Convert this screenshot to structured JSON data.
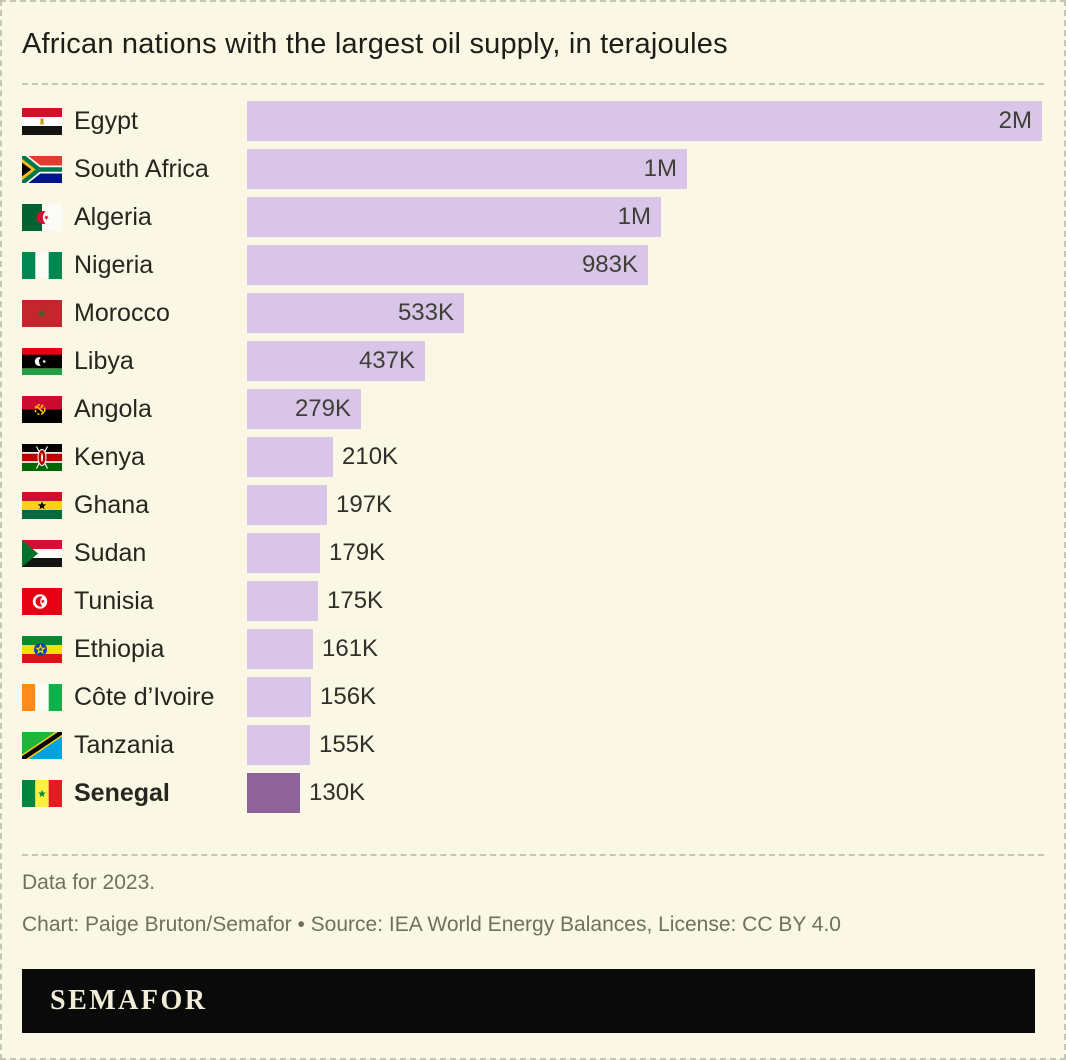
{
  "title": "African nations with the largest oil supply, in terajoules",
  "chart_data": {
    "type": "bar",
    "orientation": "horizontal",
    "unit": "terajoules",
    "title": "African nations with the largest oil supply, in terajoules",
    "legend": "none",
    "grid": false,
    "xlim": [
      0,
      1950000
    ],
    "categories": [
      "Egypt",
      "South Africa",
      "Algeria",
      "Nigeria",
      "Morocco",
      "Libya",
      "Angola",
      "Kenya",
      "Ghana",
      "Sudan",
      "Tunisia",
      "Ethiopia",
      "Côte d’Ivoire",
      "Tanzania",
      "Senegal"
    ],
    "values": [
      1950000,
      1080000,
      1015000,
      983000,
      533000,
      437000,
      279000,
      210000,
      197000,
      179000,
      175000,
      161000,
      156000,
      155000,
      130000
    ],
    "value_labels": [
      "2M",
      "1M",
      "1M",
      "983K",
      "533K",
      "437K",
      "279K",
      "210K",
      "197K",
      "179K",
      "175K",
      "161K",
      "156K",
      "155K",
      "130K"
    ],
    "highlight_category": "Senegal",
    "rows": [
      {
        "country": "Egypt",
        "flag": "egypt-flag",
        "value": 1950000,
        "label": "2M",
        "label_inside": true,
        "highlight": false
      },
      {
        "country": "South Africa",
        "flag": "south-africa-flag",
        "value": 1080000,
        "label": "1M",
        "label_inside": true,
        "highlight": false
      },
      {
        "country": "Algeria",
        "flag": "algeria-flag",
        "value": 1015000,
        "label": "1M",
        "label_inside": true,
        "highlight": false
      },
      {
        "country": "Nigeria",
        "flag": "nigeria-flag",
        "value": 983000,
        "label": "983K",
        "label_inside": true,
        "highlight": false
      },
      {
        "country": "Morocco",
        "flag": "morocco-flag",
        "value": 533000,
        "label": "533K",
        "label_inside": true,
        "highlight": false
      },
      {
        "country": "Libya",
        "flag": "libya-flag",
        "value": 437000,
        "label": "437K",
        "label_inside": true,
        "highlight": false
      },
      {
        "country": "Angola",
        "flag": "angola-flag",
        "value": 279000,
        "label": "279K",
        "label_inside": true,
        "highlight": false
      },
      {
        "country": "Kenya",
        "flag": "kenya-flag",
        "value": 210000,
        "label": "210K",
        "label_inside": false,
        "highlight": false
      },
      {
        "country": "Ghana",
        "flag": "ghana-flag",
        "value": 197000,
        "label": "197K",
        "label_inside": false,
        "highlight": false
      },
      {
        "country": "Sudan",
        "flag": "sudan-flag",
        "value": 179000,
        "label": "179K",
        "label_inside": false,
        "highlight": false
      },
      {
        "country": "Tunisia",
        "flag": "tunisia-flag",
        "value": 175000,
        "label": "175K",
        "label_inside": false,
        "highlight": false
      },
      {
        "country": "Ethiopia",
        "flag": "ethiopia-flag",
        "value": 161000,
        "label": "161K",
        "label_inside": false,
        "highlight": false
      },
      {
        "country": "Côte d’Ivoire",
        "flag": "cote-divoire-flag",
        "value": 156000,
        "label": "156K",
        "label_inside": false,
        "highlight": false
      },
      {
        "country": "Tanzania",
        "flag": "tanzania-flag",
        "value": 155000,
        "label": "155K",
        "label_inside": false,
        "highlight": false
      },
      {
        "country": "Senegal",
        "flag": "senegal-flag",
        "value": 130000,
        "label": "130K",
        "label_inside": false,
        "highlight": true
      }
    ]
  },
  "footer": {
    "note": "Data for 2023.",
    "credit": "Chart: Paige Bruton/Semafor • Source: IEA World Energy Balances, License: CC BY 4.0"
  },
  "logo": {
    "text": "SEMAFOR"
  },
  "colors": {
    "background": "#faf7e5",
    "dash": "#c6c6b2",
    "bar": "#d8c5e8",
    "bar_highlight": "#8d6399",
    "logo_background": "#0a0a0a",
    "logo_text": "#f2edd9"
  }
}
